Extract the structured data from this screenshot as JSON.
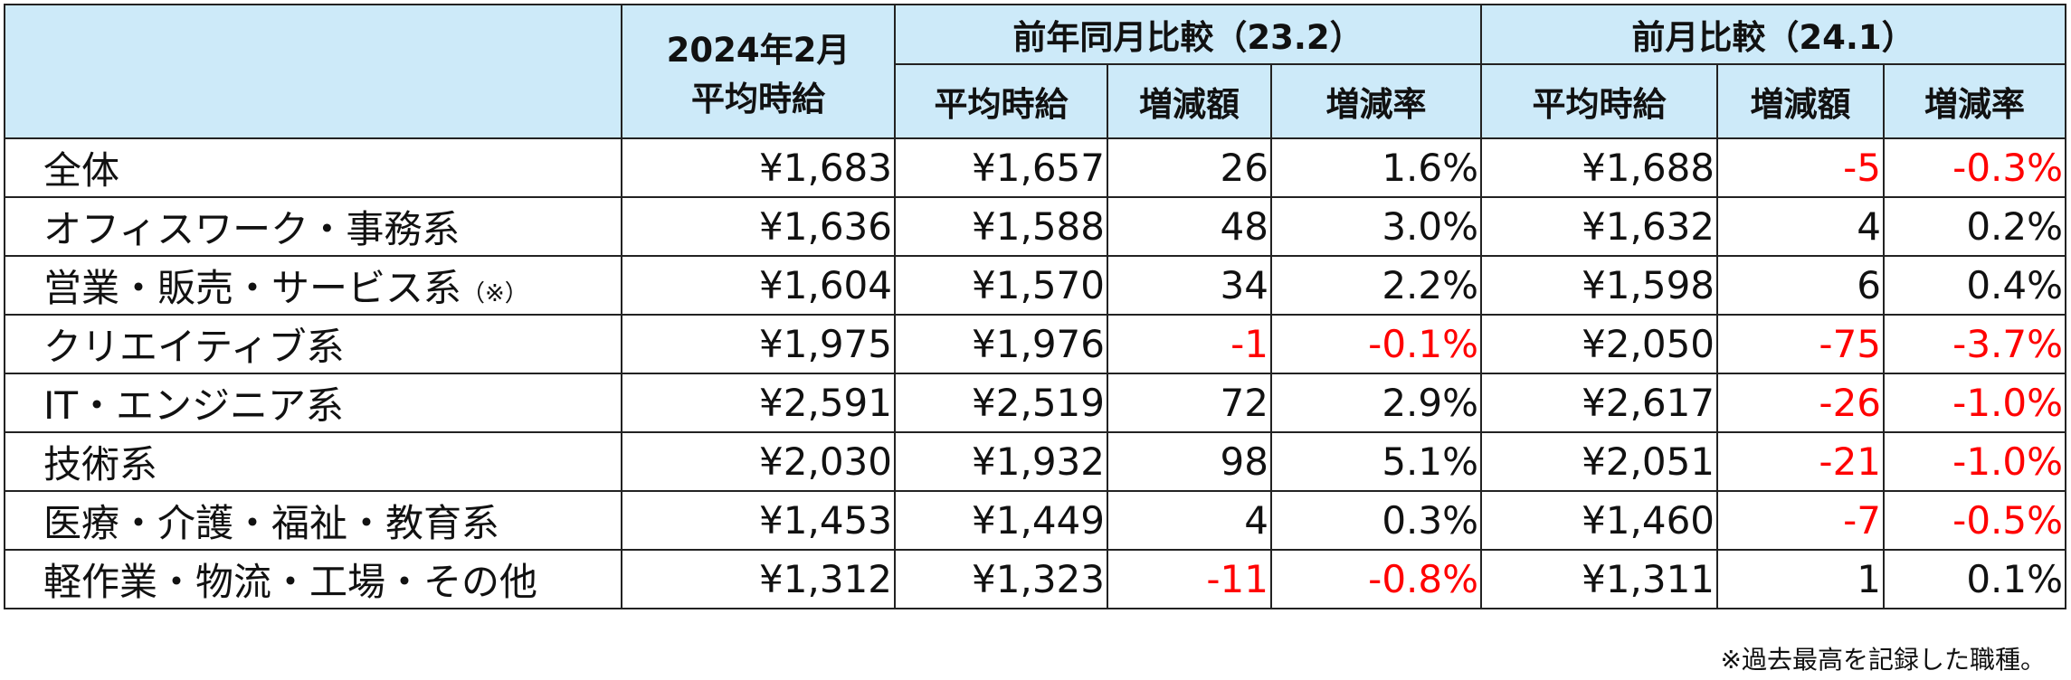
{
  "table": {
    "header": {
      "current": [
        "2024年2月",
        "平均時給"
      ],
      "yoy": {
        "title": "前年同月比較（23.2）",
        "columns": [
          "平均時給",
          "増減額",
          "増減率"
        ]
      },
      "mom": {
        "title": "前月比較（24.1）",
        "columns": [
          "平均時給",
          "増減額",
          "増減率"
        ]
      }
    },
    "rows": [
      {
        "label": "全体",
        "cells": [
          "¥1,683",
          "¥1,657",
          "26",
          "1.6%",
          "¥1,688",
          "-5",
          "-0.3%"
        ]
      },
      {
        "label": "オフィスワーク・事務系",
        "cells": [
          "¥1,636",
          "¥1,588",
          "48",
          "3.0%",
          "¥1,632",
          "4",
          "0.2%"
        ]
      },
      {
        "label": "営業・販売・サービス系",
        "note": "（※）",
        "cells": [
          "¥1,604",
          "¥1,570",
          "34",
          "2.2%",
          "¥1,598",
          "6",
          "0.4%"
        ]
      },
      {
        "label": "クリエイティブ系",
        "cells": [
          "¥1,975",
          "¥1,976",
          "-1",
          "-0.1%",
          "¥2,050",
          "-75",
          "-3.7%"
        ]
      },
      {
        "label": "IT・エンジニア系",
        "cells": [
          "¥2,591",
          "¥2,519",
          "72",
          "2.9%",
          "¥2,617",
          "-26",
          "-1.0%"
        ]
      },
      {
        "label": "技術系",
        "cells": [
          "¥2,030",
          "¥1,932",
          "98",
          "5.1%",
          "¥2,051",
          "-21",
          "-1.0%"
        ]
      },
      {
        "label": "医療・介護・福祉・教育系",
        "cells": [
          "¥1,453",
          "¥1,449",
          "4",
          "0.3%",
          "¥1,460",
          "-7",
          "-0.5%"
        ]
      },
      {
        "label": "軽作業・物流・工場・その他",
        "cells": [
          "¥1,312",
          "¥1,323",
          "-11",
          "-0.8%",
          "¥1,311",
          "1",
          "0.1%"
        ]
      }
    ]
  },
  "footnote": "※過去最高を記録した職種。"
}
